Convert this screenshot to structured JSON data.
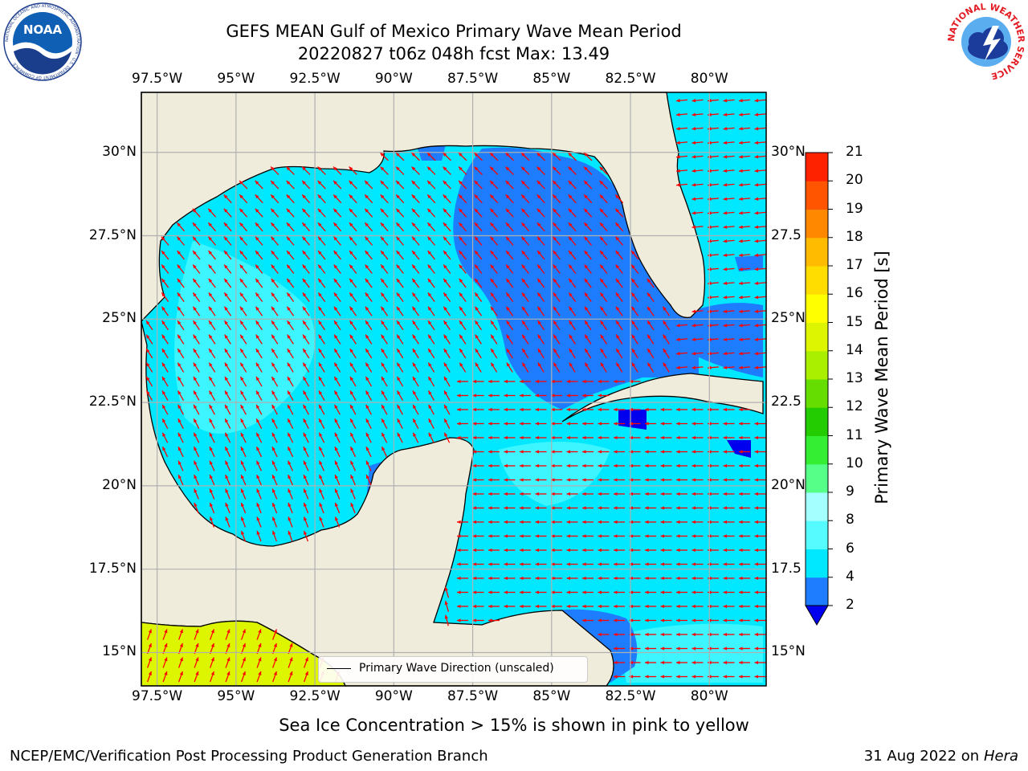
{
  "header": {
    "title_line1": "GEFS MEAN Gulf of Mexico Primary Wave Mean Period",
    "title_line2": "20220827 t06z 048h fcst   Max: 13.49"
  },
  "logos": {
    "noaa": "NOAA",
    "noaa_ring_text": "NATIONAL OCEANIC AND ATMOSPHERIC ADMINISTRATION · U.S. DEPARTMENT OF COMMERCE",
    "nws_ring_text": "NATIONAL WEATHER SERVICE"
  },
  "map": {
    "lon_range": [
      -98.0,
      -78.2
    ],
    "lat_range": [
      14.0,
      31.8
    ],
    "x_ticks": [
      "97.5°W",
      "95°W",
      "92.5°W",
      "90°W",
      "87.5°W",
      "85°W",
      "82.5°W",
      "80°W"
    ],
    "y_ticks_left": [
      "15°N",
      "17.5°N",
      "20°N",
      "22.5°N",
      "25°N",
      "27.5°N",
      "30°N"
    ],
    "y_ticks_right": [
      "15°N",
      "17.5",
      "20°N",
      "22.5",
      "25°N",
      "27.5",
      "30°N"
    ],
    "land_color": "#efecdc",
    "arrow_color": "#ff0000",
    "legend_label": "Primary Wave Direction (unscaled)"
  },
  "colorbar": {
    "title": "Primary Wave Mean Period [s]",
    "levels": [
      "2",
      "4",
      "6",
      "8",
      "9",
      "10",
      "11",
      "12",
      "13",
      "14",
      "15",
      "16",
      "17",
      "18",
      "19",
      "20",
      "21"
    ],
    "colors": [
      "#0000ee",
      "#1e7cff",
      "#00e8ff",
      "#55fbff",
      "#a4ffff",
      "#55ff88",
      "#33ee33",
      "#22cc00",
      "#66dd00",
      "#aaee00",
      "#ddf500",
      "#ffff00",
      "#ffdd00",
      "#ffbb00",
      "#ff8800",
      "#ff5500",
      "#ff2200",
      "#ff0000"
    ]
  },
  "footer": {
    "sea_ice_note": "Sea Ice Concentration > 15% is shown in pink to yellow",
    "credit_left": "NCEP/EMC/Verification Post Processing Product Generation Branch",
    "credit_right_date": "31 Aug 2022 on",
    "credit_right_machine": "Hera"
  }
}
